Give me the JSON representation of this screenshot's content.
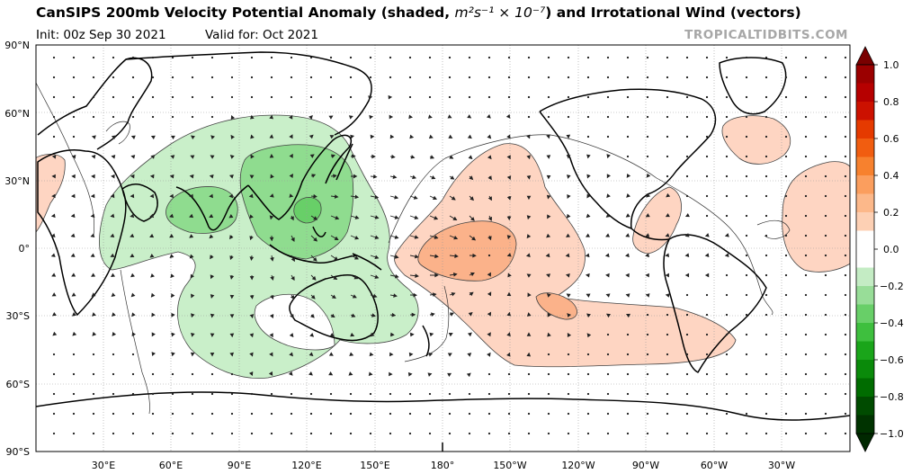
{
  "header": {
    "title_main": "CanSIPS 200mb Velocity Potential Anomaly (shaded,",
    "title_units": "m²s⁻¹ × 10⁻⁷",
    "title_tail": ") and Irrotational Wind (vectors)",
    "init": "Init: 00z Sep 30 2021",
    "valid": "Valid for: Oct 2021",
    "source": "TROPICALTIDBITS.COM"
  },
  "map": {
    "projection": "equirectangular",
    "lat_labels": [
      "90°N",
      "60°N",
      "30°N",
      "0°",
      "30°S",
      "60°S",
      "90°S"
    ],
    "lon_labels": [
      "30°E",
      "60°E",
      "90°E",
      "120°E",
      "150°E",
      "180°",
      "150°W",
      "120°W",
      "90°W",
      "60°W",
      "30°W"
    ],
    "gridlines": true,
    "anomaly_colors": {
      "negative_light": "#c9efc9",
      "negative_mid": "#8fdc8f",
      "positive_light": "#fed5c2",
      "positive_mid": "#fbb28a"
    }
  },
  "colorbar": {
    "ticks": [
      "1.0",
      "0.8",
      "0.6",
      "0.4",
      "0.2",
      "0.0",
      "−0.2",
      "−0.4",
      "−0.6",
      "−0.8",
      "−1.0"
    ],
    "colors_top_to_bottom": [
      "#9b0000",
      "#b60000",
      "#cc1100",
      "#e53a00",
      "#f15d10",
      "#f7812e",
      "#fb9e5e",
      "#fcb88a",
      "#fdd0b4",
      "#ffffff",
      "#ffffff",
      "#c4ecc4",
      "#98dd98",
      "#68cf68",
      "#3ebf3e",
      "#1aa51a",
      "#0a8a0a",
      "#006c00",
      "#004b00",
      "#003300"
    ]
  }
}
